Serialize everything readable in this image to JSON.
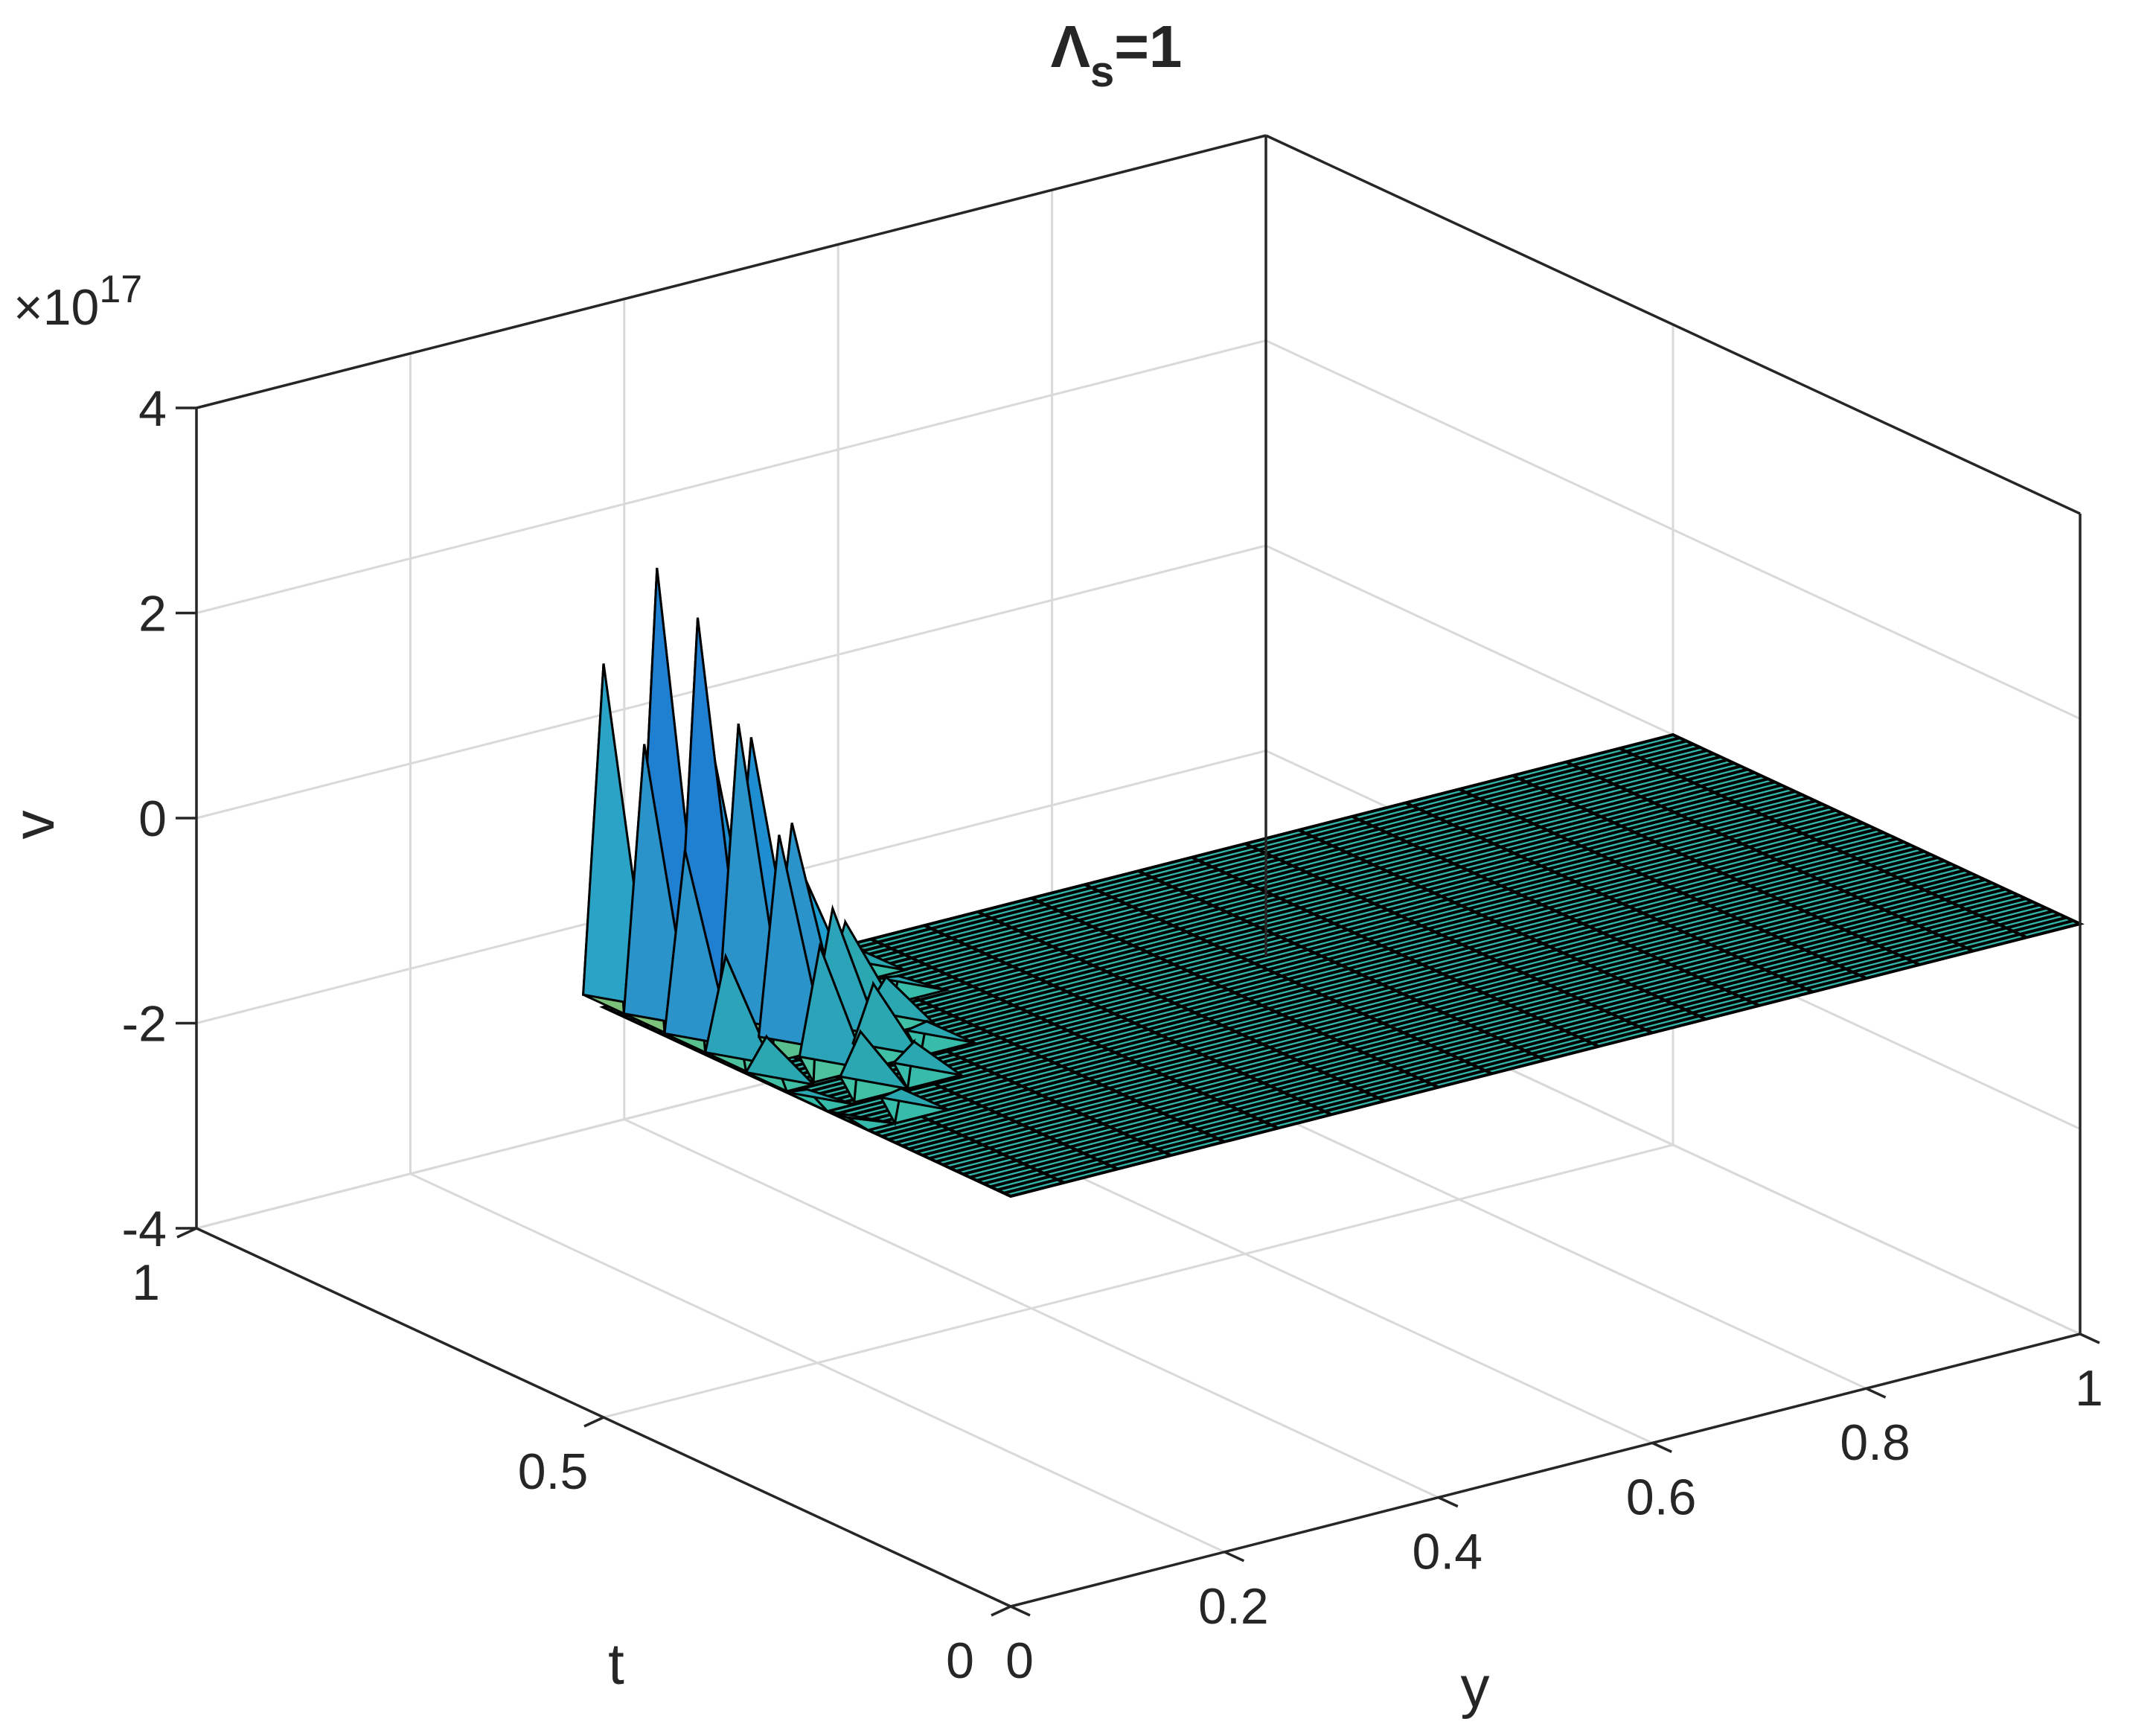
{
  "chart_data": {
    "type": "surface",
    "title": {
      "main": "Λ",
      "subscript": "s",
      "suffix": "=1"
    },
    "xlabel": "y",
    "ylabel": "t",
    "zlabel": "v",
    "z_multiplier": "×10",
    "z_exponent": "17",
    "xlim": [
      0,
      1
    ],
    "ylim": [
      0,
      1
    ],
    "zlim": [
      -4,
      4
    ],
    "x_ticks": [
      {
        "value": 0,
        "label": "0"
      },
      {
        "value": 0.2,
        "label": "0.2"
      },
      {
        "value": 0.4,
        "label": "0.4"
      },
      {
        "value": 0.6,
        "label": "0.6"
      },
      {
        "value": 0.8,
        "label": "0.8"
      },
      {
        "value": 1,
        "label": "1"
      }
    ],
    "y_ticks": [
      {
        "value": 0,
        "label": "0"
      },
      {
        "value": 0.5,
        "label": "0.5"
      },
      {
        "value": 1,
        "label": "1"
      }
    ],
    "z_ticks": [
      {
        "value": -4,
        "label": "-4"
      },
      {
        "value": -2,
        "label": "-2"
      },
      {
        "value": 0,
        "label": "0"
      },
      {
        "value": 2,
        "label": "2"
      },
      {
        "value": 4,
        "label": "4"
      }
    ],
    "grid": true,
    "colormap": [
      "#3eb7c2",
      "#4bc29b",
      "#7cc17a",
      "#c3be62",
      "#f0c84a"
    ],
    "flat_color": "#33b5a9",
    "surface_extent": {
      "y": [
        0,
        1
      ],
      "t": [
        0,
        0.5
      ]
    },
    "surface_value": 0,
    "spikes": [
      {
        "y": 0.0,
        "t": 0.5,
        "peak": 3.35,
        "base": 0.03,
        "color": "#7cc17a",
        "shade": "#2ba3c7"
      },
      {
        "y": 0.0,
        "t": 0.45,
        "peak": 2.75,
        "base": 0.03,
        "color": "#7cc17a",
        "shade": "#2a93c9"
      },
      {
        "y": 0.0,
        "t": 0.4,
        "peak": 1.9,
        "base": 0.02,
        "color": "#58c08e",
        "shade": "#2a93c9"
      },
      {
        "y": 0.0,
        "t": 0.35,
        "peak": 1.05,
        "base": 0.02,
        "color": "#4cc29c",
        "shade": "#2ba3b9"
      },
      {
        "y": 0.0,
        "t": 0.3,
        "peak": 0.45,
        "base": 0.01,
        "color": "#3fc0a5",
        "shade": "#2aa7b0"
      },
      {
        "y": 0.0,
        "t": 0.25,
        "peak": 0.12,
        "base": 0.0,
        "color": "#38bcaa",
        "shade": "#2aa7b0"
      },
      {
        "y": 0.0,
        "t": 0.2,
        "peak": 0.03,
        "base": 0.0,
        "color": "#36b9aa",
        "shade": "#2aa7b0"
      },
      {
        "y": 0.05,
        "t": 0.5,
        "peak": 4.15,
        "base": 0.08,
        "color": "#d8be5c",
        "shade": "#1f7fd0"
      },
      {
        "y": 0.05,
        "t": 0.45,
        "peak": 3.85,
        "base": 0.07,
        "color": "#c3be62",
        "shade": "#1f7fd0"
      },
      {
        "y": 0.05,
        "t": 0.4,
        "peak": 3.0,
        "base": 0.05,
        "color": "#7cc17a",
        "shade": "#2a93c9"
      },
      {
        "y": 0.05,
        "t": 0.35,
        "peak": 2.1,
        "base": 0.04,
        "color": "#58c08e",
        "shade": "#2a93c9"
      },
      {
        "y": 0.05,
        "t": 0.3,
        "peak": 1.2,
        "base": 0.03,
        "color": "#4cc29c",
        "shade": "#2ba3b9"
      },
      {
        "y": 0.05,
        "t": 0.25,
        "peak": 0.55,
        "base": 0.02,
        "color": "#3fc0a5",
        "shade": "#2aa7b0"
      },
      {
        "y": 0.05,
        "t": 0.2,
        "peak": 0.18,
        "base": 0.0,
        "color": "#38bcaa",
        "shade": "#2aa7b0"
      },
      {
        "y": 0.1,
        "t": 0.5,
        "peak": 2.35,
        "base": 0.08,
        "color": "#7cc17a",
        "shade": "#1f8ed0"
      },
      {
        "y": 0.1,
        "t": 0.45,
        "peak": 2.55,
        "base": 0.06,
        "color": "#7cc17a",
        "shade": "#1f8ed0"
      },
      {
        "y": 0.1,
        "t": 0.4,
        "peak": 1.9,
        "base": 0.05,
        "color": "#58c08e",
        "shade": "#2a93c9"
      },
      {
        "y": 0.1,
        "t": 0.35,
        "peak": 1.25,
        "base": 0.04,
        "color": "#4cc29c",
        "shade": "#2ba3b9"
      },
      {
        "y": 0.1,
        "t": 0.3,
        "peak": 0.7,
        "base": 0.03,
        "color": "#3fc0a5",
        "shade": "#2aa7b0"
      },
      {
        "y": 0.1,
        "t": 0.25,
        "peak": 0.32,
        "base": 0.02,
        "color": "#38bcaa",
        "shade": "#2aa7b0"
      },
      {
        "y": 0.15,
        "t": 0.5,
        "peak": 0.65,
        "base": 0.07,
        "color": "#3fc0a5",
        "shade": "#1f9fd0"
      },
      {
        "y": 0.15,
        "t": 0.45,
        "peak": 1.05,
        "base": 0.05,
        "color": "#4cc29c",
        "shade": "#1f9fd0"
      },
      {
        "y": 0.15,
        "t": 0.4,
        "peak": 0.8,
        "base": 0.04,
        "color": "#3fc0a5",
        "shade": "#2aa7b0"
      },
      {
        "y": 0.15,
        "t": 0.35,
        "peak": 0.45,
        "base": 0.03,
        "color": "#3fc0a5",
        "shade": "#2aa7b0"
      },
      {
        "y": 0.15,
        "t": 0.3,
        "peak": 0.2,
        "base": 0.02,
        "color": "#38bcaa",
        "shade": "#2aa7b0"
      },
      {
        "y": 0.2,
        "t": 0.5,
        "peak": 0.15,
        "base": 0.05,
        "color": "#38bcaa",
        "shade": "#2aa7b0"
      },
      {
        "y": 0.2,
        "t": 0.45,
        "peak": 0.22,
        "base": 0.04,
        "color": "#38bcaa",
        "shade": "#2aa7b0"
      },
      {
        "y": 0.2,
        "t": 0.4,
        "peak": 0.14,
        "base": 0.03,
        "color": "#38bcaa",
        "shade": "#2aa7b0"
      }
    ]
  }
}
